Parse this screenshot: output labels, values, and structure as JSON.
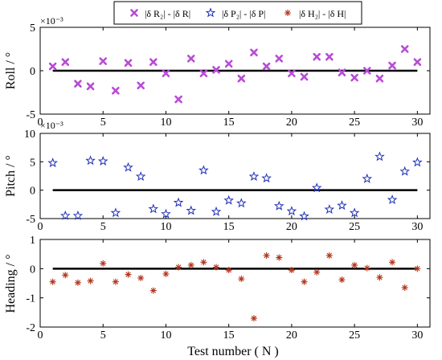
{
  "legend": {
    "items": [
      {
        "label": "|δ R₂| - |δ R|",
        "marker": "x",
        "color": "#b84bd6"
      },
      {
        "label": "|δ P₂| - |δ P|",
        "marker": "star",
        "color": "#1f2fb8"
      },
      {
        "label": "|δ H₂| - |δ H|",
        "marker": "asterisk",
        "color": "#b3361d"
      }
    ]
  },
  "xaxis": {
    "label": "Test number ( N )",
    "lim": [
      0,
      31
    ],
    "ticks": [
      0,
      5,
      10,
      15,
      20,
      25,
      30
    ]
  },
  "chart_data": [
    {
      "type": "scatter",
      "ylabel": "Roll / °",
      "exponent_label": "×10⁻³",
      "ylim": [
        -5,
        5
      ],
      "yticks": [
        -5,
        0,
        5
      ],
      "color": "#b84bd6",
      "marker": "x",
      "series_label": "|δ R₂| - |δ R|",
      "x": [
        1,
        2,
        3,
        4,
        5,
        6,
        7,
        8,
        9,
        10,
        11,
        12,
        13,
        14,
        15,
        16,
        17,
        18,
        19,
        20,
        21,
        22,
        23,
        24,
        25,
        26,
        27,
        28,
        29,
        30
      ],
      "y": [
        0.5,
        1.0,
        -1.5,
        -1.8,
        1.1,
        -2.3,
        0.9,
        -1.7,
        1.0,
        -0.3,
        -3.3,
        1.4,
        -0.3,
        0.1,
        0.8,
        -0.9,
        2.1,
        0.5,
        1.4,
        -0.3,
        -0.7,
        1.6,
        1.6,
        -0.2,
        -0.8,
        0.0,
        -0.9,
        0.6,
        2.5,
        1.0
      ]
    },
    {
      "type": "scatter",
      "ylabel": "Pitch / °",
      "exponent_label": "×10⁻³",
      "ylim": [
        -5,
        10
      ],
      "yticks": [
        -5,
        0,
        5,
        10
      ],
      "color": "#1f2fb8",
      "marker": "star",
      "series_label": "|δ P₂| - |δ P|",
      "x": [
        1,
        2,
        3,
        4,
        5,
        6,
        7,
        8,
        9,
        10,
        11,
        12,
        13,
        14,
        15,
        16,
        17,
        18,
        19,
        20,
        21,
        22,
        23,
        24,
        25,
        26,
        27,
        28,
        29,
        30
      ],
      "y": [
        4.8,
        -4.5,
        -4.5,
        5.2,
        5.1,
        -4.0,
        4.0,
        2.4,
        -3.3,
        -4.2,
        -2.2,
        -3.6,
        3.5,
        -3.8,
        -1.8,
        -2.3,
        2.4,
        2.1,
        -2.8,
        -3.7,
        -4.6,
        0.4,
        -3.4,
        -2.7,
        -4.0,
        2.0,
        5.9,
        -1.7,
        3.3,
        4.9
      ]
    },
    {
      "type": "scatter",
      "ylabel": "Heading / °",
      "ylim": [
        -2,
        1
      ],
      "yticks": [
        -2,
        -1,
        0,
        1
      ],
      "color": "#b3361d",
      "marker": "asterisk",
      "series_label": "|δ H₂| - |δ H|",
      "x": [
        1,
        2,
        3,
        4,
        5,
        6,
        7,
        8,
        9,
        10,
        11,
        12,
        13,
        14,
        15,
        16,
        17,
        18,
        19,
        20,
        21,
        22,
        23,
        24,
        25,
        26,
        27,
        28,
        29,
        30
      ],
      "y": [
        -0.45,
        -0.22,
        -0.48,
        -0.42,
        0.18,
        -0.45,
        -0.2,
        -0.32,
        -0.75,
        -0.18,
        0.05,
        0.12,
        0.22,
        0.05,
        -0.05,
        -0.35,
        -1.7,
        0.45,
        0.38,
        -0.05,
        -0.45,
        -0.12,
        0.45,
        -0.38,
        0.12,
        0.02,
        -0.3,
        0.22,
        -0.65,
        0.0
      ]
    }
  ]
}
